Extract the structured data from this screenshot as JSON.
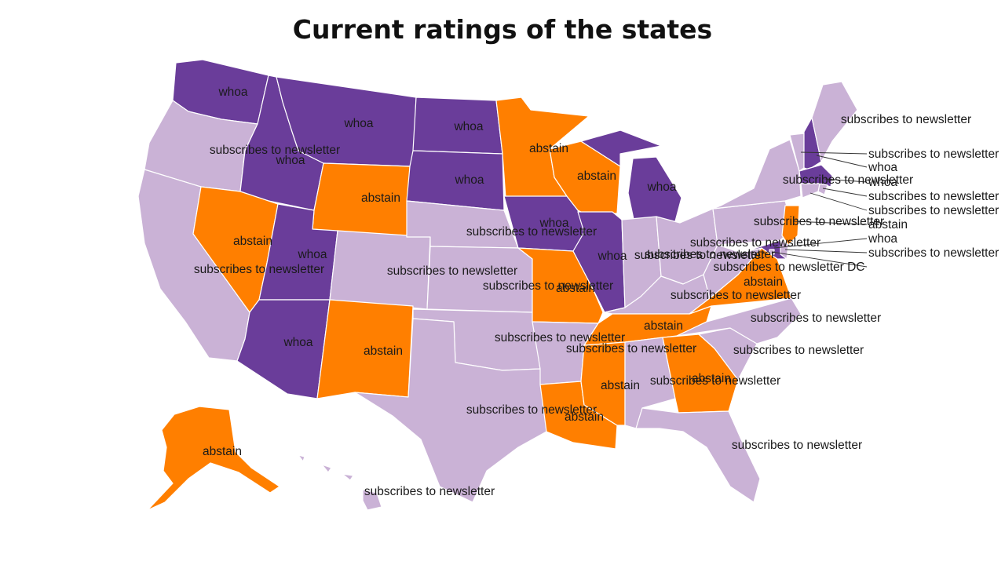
{
  "title": "Current ratings of the states",
  "colors": {
    "whoa": "#6a3d9a",
    "subscribes to newsletter": "#cab2d6",
    "abstain": "#ff7f00"
  },
  "states": [
    {
      "code": "WA",
      "rating": "whoa"
    },
    {
      "code": "OR",
      "rating": "subscribes to newsletter"
    },
    {
      "code": "CA",
      "rating": "subscribes to newsletter"
    },
    {
      "code": "ID",
      "rating": "whoa"
    },
    {
      "code": "NV",
      "rating": "abstain"
    },
    {
      "code": "MT",
      "rating": "whoa"
    },
    {
      "code": "WY",
      "rating": "abstain"
    },
    {
      "code": "UT",
      "rating": "whoa"
    },
    {
      "code": "AZ",
      "rating": "whoa"
    },
    {
      "code": "CO",
      "rating": "subscribes to newsletter"
    },
    {
      "code": "NM",
      "rating": "abstain"
    },
    {
      "code": "ND",
      "rating": "whoa"
    },
    {
      "code": "SD",
      "rating": "whoa"
    },
    {
      "code": "NE",
      "rating": "subscribes to newsletter"
    },
    {
      "code": "KS",
      "rating": "subscribes to newsletter"
    },
    {
      "code": "OK",
      "rating": "subscribes to newsletter"
    },
    {
      "code": "TX",
      "rating": "subscribes to newsletter"
    },
    {
      "code": "MN",
      "rating": "abstain"
    },
    {
      "code": "IA",
      "rating": "whoa"
    },
    {
      "code": "MO",
      "rating": "abstain"
    },
    {
      "code": "AR",
      "rating": "subscribes to newsletter"
    },
    {
      "code": "LA",
      "rating": "abstain"
    },
    {
      "code": "WI",
      "rating": "abstain"
    },
    {
      "code": "IL",
      "rating": "whoa"
    },
    {
      "code": "MI",
      "rating": "whoa"
    },
    {
      "code": "IN",
      "rating": "subscribes to newsletter"
    },
    {
      "code": "OH",
      "rating": "subscribes to newsletter"
    },
    {
      "code": "KY",
      "rating": "subscribes to newsletter"
    },
    {
      "code": "TN",
      "rating": "abstain"
    },
    {
      "code": "MS",
      "rating": "abstain"
    },
    {
      "code": "AL",
      "rating": "subscribes to newsletter"
    },
    {
      "code": "GA",
      "rating": "abstain"
    },
    {
      "code": "FL",
      "rating": "subscribes to newsletter"
    },
    {
      "code": "SC",
      "rating": "subscribes to newsletter"
    },
    {
      "code": "NC",
      "rating": "subscribes to newsletter"
    },
    {
      "code": "VA",
      "rating": "abstain"
    },
    {
      "code": "WV",
      "rating": "subscribes to newsletter"
    },
    {
      "code": "PA",
      "rating": "subscribes to newsletter"
    },
    {
      "code": "NY",
      "rating": "subscribes to newsletter"
    },
    {
      "code": "VT",
      "rating": "subscribes to newsletter"
    },
    {
      "code": "NH",
      "rating": "whoa"
    },
    {
      "code": "ME",
      "rating": "subscribes to newsletter"
    },
    {
      "code": "MA",
      "rating": "whoa"
    },
    {
      "code": "RI",
      "rating": "subscribes to newsletter"
    },
    {
      "code": "CT",
      "rating": "subscribes to newsletter"
    },
    {
      "code": "NJ",
      "rating": "abstain"
    },
    {
      "code": "DE",
      "rating": "subscribes to newsletter"
    },
    {
      "code": "MD",
      "rating": "whoa"
    },
    {
      "code": "DC",
      "rating": "subscribes to newsletter"
    },
    {
      "code": "AK",
      "rating": "abstain"
    },
    {
      "code": "HI",
      "rating": "subscribes to newsletter"
    }
  ],
  "labels": [
    "whoa",
    "subscribes to newsletter",
    "subscribes to newsletter",
    "whoa",
    "abstain",
    "whoa",
    "abstain",
    "whoa",
    "whoa",
    "subscribes to newsletter",
    "abstain",
    "whoa",
    "whoa",
    "subscribes to newsletter",
    "subscribes to newsletter",
    "subscribes to newsletter",
    "subscribes to newsletter",
    "abstain",
    "whoa",
    "abstain",
    "subscribes to newsletter",
    "abstain",
    "abstain",
    "whoa",
    "whoa",
    "subscribes to newsletter",
    "subscribes to newsletter",
    "subscribes to newsletter",
    "abstain",
    "abstain",
    "subscribes to newsletter",
    "abstain",
    "subscribes to newsletter",
    "subscribes to newsletter",
    "subscribes to newsletter",
    "abstain",
    "subscribes to newsletter",
    "subscribes to newsletter",
    "subscribes to newsletter",
    "subscribes to newsletter",
    "whoa",
    "subscribes to newsletter",
    "whoa",
    "subscribes to newsletter",
    "subscribes to newsletter",
    "abstain",
    "subscribes to newsletter",
    "whoa",
    "subscribes to newsletter DC",
    "abstain",
    "subscribes to newsletter"
  ]
}
